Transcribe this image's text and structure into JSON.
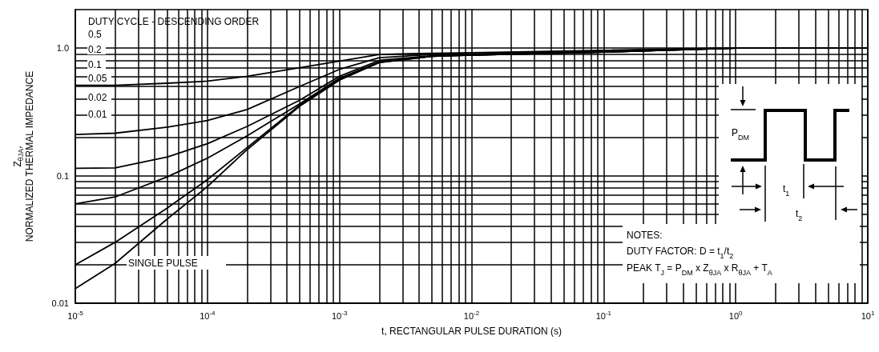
{
  "chart_data": {
    "type": "line",
    "xlabel": "t, RECTANGULAR PULSE DURATION (s)",
    "ylabel": "Z$_{θJA}$, NORMALIZED THERMAL IMPEDANCE",
    "log": "xy",
    "grid": true,
    "marker": "none",
    "line_style": "solid",
    "xlim": [
      1e-05,
      10
    ],
    "ylim": [
      0.01,
      2
    ],
    "xticks": [
      {
        "value": 1e-05,
        "label": "10$^{-5}$"
      },
      {
        "value": 2e-05,
        "label": null
      },
      {
        "value": 3e-05,
        "label": null
      },
      {
        "value": 4e-05,
        "label": null
      },
      {
        "value": 5e-05,
        "label": null
      },
      {
        "value": 6e-05,
        "label": null
      },
      {
        "value": 7e-05,
        "label": null
      },
      {
        "value": 8e-05,
        "label": null
      },
      {
        "value": 9e-05,
        "label": null
      },
      {
        "value": 0.0001,
        "label": "10$^{-4}$"
      },
      {
        "value": 0.0002,
        "label": null
      },
      {
        "value": 0.0003,
        "label": null
      },
      {
        "value": 0.0004,
        "label": null
      },
      {
        "value": 0.0005,
        "label": null
      },
      {
        "value": 0.0006,
        "label": null
      },
      {
        "value": 0.0007,
        "label": null
      },
      {
        "value": 0.0008,
        "label": null
      },
      {
        "value": 0.0009,
        "label": null
      },
      {
        "value": 0.001,
        "label": "10$^{-3}$"
      },
      {
        "value": 0.002,
        "label": null
      },
      {
        "value": 0.003,
        "label": null
      },
      {
        "value": 0.004,
        "label": null
      },
      {
        "value": 0.005,
        "label": null
      },
      {
        "value": 0.006,
        "label": null
      },
      {
        "value": 0.007,
        "label": null
      },
      {
        "value": 0.008,
        "label": null
      },
      {
        "value": 0.009,
        "label": null
      },
      {
        "value": 0.01,
        "label": "10$^{-2}$"
      },
      {
        "value": 0.02,
        "label": null
      },
      {
        "value": 0.03,
        "label": null
      },
      {
        "value": 0.04,
        "label": null
      },
      {
        "value": 0.05,
        "label": null
      },
      {
        "value": 0.06,
        "label": null
      },
      {
        "value": 0.07,
        "label": null
      },
      {
        "value": 0.08,
        "label": null
      },
      {
        "value": 0.09,
        "label": null
      },
      {
        "value": 0.1,
        "label": "10$^{-1}$"
      },
      {
        "value": 0.2,
        "label": null
      },
      {
        "value": 0.3,
        "label": null
      },
      {
        "value": 0.4,
        "label": null
      },
      {
        "value": 0.5,
        "label": null
      },
      {
        "value": 0.6,
        "label": null
      },
      {
        "value": 0.7,
        "label": null
      },
      {
        "value": 0.8,
        "label": null
      },
      {
        "value": 0.9,
        "label": null
      },
      {
        "value": 1,
        "label": "10$^{0}$"
      },
      {
        "value": 2,
        "label": null
      },
      {
        "value": 3,
        "label": null
      },
      {
        "value": 4,
        "label": null
      },
      {
        "value": 5,
        "label": null
      },
      {
        "value": 6,
        "label": null
      },
      {
        "value": 7,
        "label": null
      },
      {
        "value": 8,
        "label": null
      },
      {
        "value": 9,
        "label": null
      },
      {
        "value": 10,
        "label": "10$^{1}$"
      }
    ],
    "yticks": [
      0.01,
      {
        "value": 0.02,
        "label": null
      },
      {
        "value": 0.03,
        "label": null
      },
      {
        "value": 0.04,
        "label": null
      },
      {
        "value": 0.05,
        "label": null
      },
      {
        "value": 0.06,
        "label": null
      },
      {
        "value": 0.07,
        "label": null
      },
      {
        "value": 0.08,
        "label": null
      },
      {
        "value": 0.09,
        "label": null
      },
      0.1,
      {
        "value": 0.2,
        "label": null
      },
      {
        "value": 0.3,
        "label": null
      },
      {
        "value": 0.4,
        "label": null
      },
      {
        "value": 0.5,
        "label": null
      },
      {
        "value": 0.6,
        "label": null
      },
      {
        "value": 0.7,
        "label": null
      },
      {
        "value": 0.8,
        "label": null
      },
      {
        "value": 0.9,
        "label": null
      },
      {
        "value": 1,
        "label": "1.0"
      }
    ],
    "x": [
      1e-05,
      2e-05,
      5e-05,
      0.0001,
      0.0002,
      0.0005,
      0.001,
      0.002,
      0.005,
      0.01,
      0.1,
      1,
      10
    ],
    "series": [
      {
        "color": "#000000",
        "values": [
          0.51,
          0.51,
          0.53,
          0.55,
          0.6,
          0.7,
          0.79,
          0.89,
          0.91,
          0.92,
          0.96,
          1.0,
          1.0
        ]
      },
      {
        "color": "#000000",
        "values": [
          0.21,
          0.215,
          0.24,
          0.27,
          0.33,
          0.5,
          0.68,
          0.84,
          0.89,
          0.9,
          0.95,
          1.0,
          1.0
        ]
      },
      {
        "color": "#000000",
        "values": [
          0.114,
          0.115,
          0.14,
          0.178,
          0.243,
          0.39,
          0.6,
          0.8,
          0.87,
          0.88,
          0.93,
          1.0,
          1.0
        ]
      },
      {
        "color": "#000000",
        "values": [
          0.06,
          0.068,
          0.098,
          0.137,
          0.205,
          0.365,
          0.58,
          0.78,
          0.86,
          0.88,
          0.93,
          1.0,
          1.0
        ]
      },
      {
        "color": "#000000",
        "values": [
          0.02,
          0.03,
          0.056,
          0.093,
          0.166,
          0.356,
          0.57,
          0.77,
          0.86,
          0.88,
          0.93,
          1.0,
          1.0
        ]
      },
      {
        "color": "#000000",
        "values": [
          0.013,
          0.0205,
          0.046,
          0.082,
          0.16,
          0.35,
          0.56,
          0.77,
          0.86,
          0.88,
          0.93,
          1.0,
          1.0
        ]
      }
    ],
    "annotations": [
      "DUTY CYCLE - DESCENDING ORDER",
      "0.5",
      "0.2",
      "0.1",
      "0.05",
      "0.02",
      "0.01",
      "SINGLE PULSE",
      "P$_{DM}$",
      "t$_{1}$",
      "t$_{2}$",
      "NOTES:",
      "DUTY FACTOR: D = t$_{1}$/t$_{2}$",
      "PEAK T$_{J}$ = P$_{DM}$ x Z$_{θJA}$ x R$_{θJA}$ + T$_{A}$"
    ]
  }
}
